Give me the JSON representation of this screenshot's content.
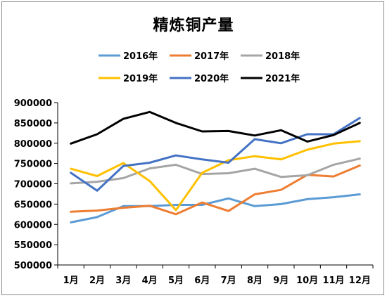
{
  "chart_data": {
    "type": "line",
    "title": "精炼铜产量",
    "xlabel": "",
    "ylabel": "",
    "categories": [
      "1月",
      "2月",
      "3月",
      "4月",
      "5月",
      "6月",
      "7月",
      "8月",
      "9月",
      "10月",
      "11月",
      "12月"
    ],
    "ylim": [
      500000,
      900000
    ],
    "yticks": [
      "500000",
      "550000",
      "600000",
      "650000",
      "700000",
      "750000",
      "800000",
      "850000",
      "900000"
    ],
    "grid": false,
    "legend": "top",
    "series": [
      {
        "name": "2016年",
        "color": "#5b9bd5",
        "values": [
          605000,
          618000,
          645000,
          645000,
          648000,
          648000,
          664000,
          645000,
          650000,
          662000,
          667000,
          674000
        ]
      },
      {
        "name": "2017年",
        "color": "#ed7d31",
        "values": [
          631000,
          634000,
          641000,
          646000,
          625000,
          654000,
          633000,
          674000,
          685000,
          722000,
          718000,
          745000
        ]
      },
      {
        "name": "2018年",
        "color": "#a5a5a5",
        "values": [
          701000,
          705000,
          714000,
          738000,
          747000,
          724000,
          726000,
          737000,
          717000,
          721000,
          747000,
          762000
        ]
      },
      {
        "name": "2019年",
        "color": "#ffc000",
        "values": [
          737000,
          719000,
          751000,
          707000,
          635000,
          727000,
          758000,
          768000,
          760000,
          784000,
          799000,
          805000
        ]
      },
      {
        "name": "2020年",
        "color": "#4472c4",
        "values": [
          727000,
          683000,
          744000,
          752000,
          770000,
          760000,
          752000,
          810000,
          800000,
          822000,
          822000,
          862000
        ]
      },
      {
        "name": "2021年",
        "color": "#000000",
        "values": [
          799000,
          822000,
          860000,
          877000,
          850000,
          829000,
          830000,
          819000,
          832000,
          804000,
          820000,
          850000
        ]
      }
    ]
  }
}
